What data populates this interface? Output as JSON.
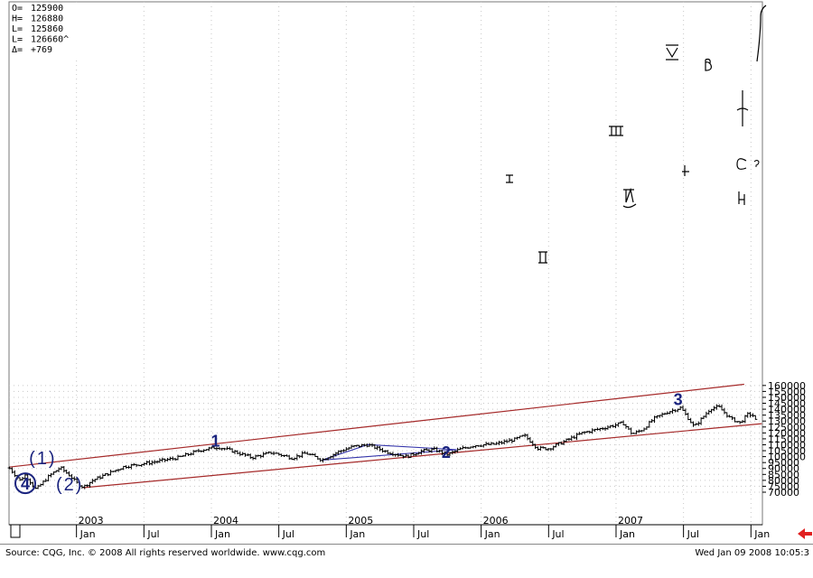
{
  "ohlc": [
    {
      "label": "O=",
      "value": "125900"
    },
    {
      "label": "H=",
      "value": "126880"
    },
    {
      "label": "L=",
      "value": "125860"
    },
    {
      "label": "L=",
      "value": "126660^"
    },
    {
      "label": "Δ=",
      "value": "+769"
    }
  ],
  "footer": {
    "source": "Source: CQG, Inc. © 2008 All rights reserved worldwide. www.cqg.com",
    "timestamp": "Wed Jan 09 2008 10:05:3"
  },
  "colors": {
    "channel": "#a52a2a",
    "triangle": "#3333aa",
    "wave": "#1a237e",
    "bars": "#000000",
    "arrow": "#e02020"
  },
  "chart_data": {
    "type": "ohlc-bar",
    "x_tick_labels": {
      "years": [
        "2003",
        "2004",
        "2005",
        "2006",
        "2007"
      ],
      "months": [
        "Jan",
        "Jul",
        "Jan",
        "Jul",
        "Jan",
        "Jul",
        "Jan",
        "Jul",
        "Jan",
        "Jul",
        "Jan",
        "Jul"
      ]
    },
    "y_ticks": [
      70000,
      75000,
      80000,
      85000,
      90000,
      95000,
      100000,
      105000,
      110000,
      115000,
      120000,
      125000,
      130000,
      135000,
      140000,
      145000,
      150000,
      155000,
      160000
    ],
    "ylim": [
      65000,
      161000
    ],
    "wave_labels": [
      {
        "text": "1",
        "t": 2004.03,
        "v": 108600
      },
      {
        "text": "2",
        "t": 2005.74,
        "v": 99000
      },
      {
        "text": "3",
        "t": 2007.46,
        "v": 143600
      },
      {
        "text": "(1)",
        "t": 2002.75,
        "v": 93800
      },
      {
        "text": "(2)",
        "t": 2002.95,
        "v": 71600
      },
      {
        "text": "4",
        "t": 2002.5,
        "v": 68400
      }
    ],
    "channel_upper": [
      [
        2002.5,
        91200
      ],
      [
        2007.95,
        161000
      ]
    ],
    "channel_lower": [
      [
        2003.05,
        73800
      ],
      [
        2008.08,
        127800
      ]
    ],
    "triangle": [
      [
        2004.82,
        97100
      ],
      [
        2005.16,
        110100
      ],
      [
        2005.82,
        105900
      ],
      [
        2004.82,
        97100
      ]
    ],
    "key_points": [
      [
        2002.5,
        90500
      ],
      [
        2002.58,
        80000
      ],
      [
        2002.62,
        84500
      ],
      [
        2002.7,
        72300
      ],
      [
        2002.8,
        84000
      ],
      [
        2002.88,
        90800
      ],
      [
        2002.95,
        84000
      ],
      [
        2003.0,
        78000
      ],
      [
        2003.05,
        74300
      ],
      [
        2003.12,
        80000
      ],
      [
        2003.2,
        84000
      ],
      [
        2003.35,
        91500
      ],
      [
        2003.55,
        95000
      ],
      [
        2003.75,
        99000
      ],
      [
        2003.92,
        105500
      ],
      [
        2004.05,
        108000
      ],
      [
        2004.15,
        105000
      ],
      [
        2004.3,
        99200
      ],
      [
        2004.45,
        103500
      ],
      [
        2004.6,
        98800
      ],
      [
        2004.7,
        103000
      ],
      [
        2004.82,
        97200
      ],
      [
        2004.95,
        104500
      ],
      [
        2005.05,
        108500
      ],
      [
        2005.16,
        110000
      ],
      [
        2005.3,
        104000
      ],
      [
        2005.45,
        100000
      ],
      [
        2005.55,
        104500
      ],
      [
        2005.65,
        106000
      ],
      [
        2005.75,
        101800
      ],
      [
        2005.85,
        106500
      ],
      [
        2005.95,
        109500
      ],
      [
        2006.1,
        110500
      ],
      [
        2006.25,
        114500
      ],
      [
        2006.32,
        117800
      ],
      [
        2006.42,
        107000
      ],
      [
        2006.5,
        106800
      ],
      [
        2006.6,
        112000
      ],
      [
        2006.75,
        120000
      ],
      [
        2006.9,
        124000
      ],
      [
        2007.0,
        126800
      ],
      [
        2007.05,
        128500
      ],
      [
        2007.12,
        119000
      ],
      [
        2007.2,
        123000
      ],
      [
        2007.28,
        132000
      ],
      [
        2007.38,
        137500
      ],
      [
        2007.48,
        141300
      ],
      [
        2007.58,
        125000
      ],
      [
        2007.7,
        140500
      ],
      [
        2007.76,
        142000
      ],
      [
        2007.85,
        132000
      ],
      [
        2007.92,
        128500
      ],
      [
        2007.98,
        136000
      ],
      [
        2008.02,
        134500
      ],
      [
        2008.05,
        125900
      ]
    ]
  }
}
